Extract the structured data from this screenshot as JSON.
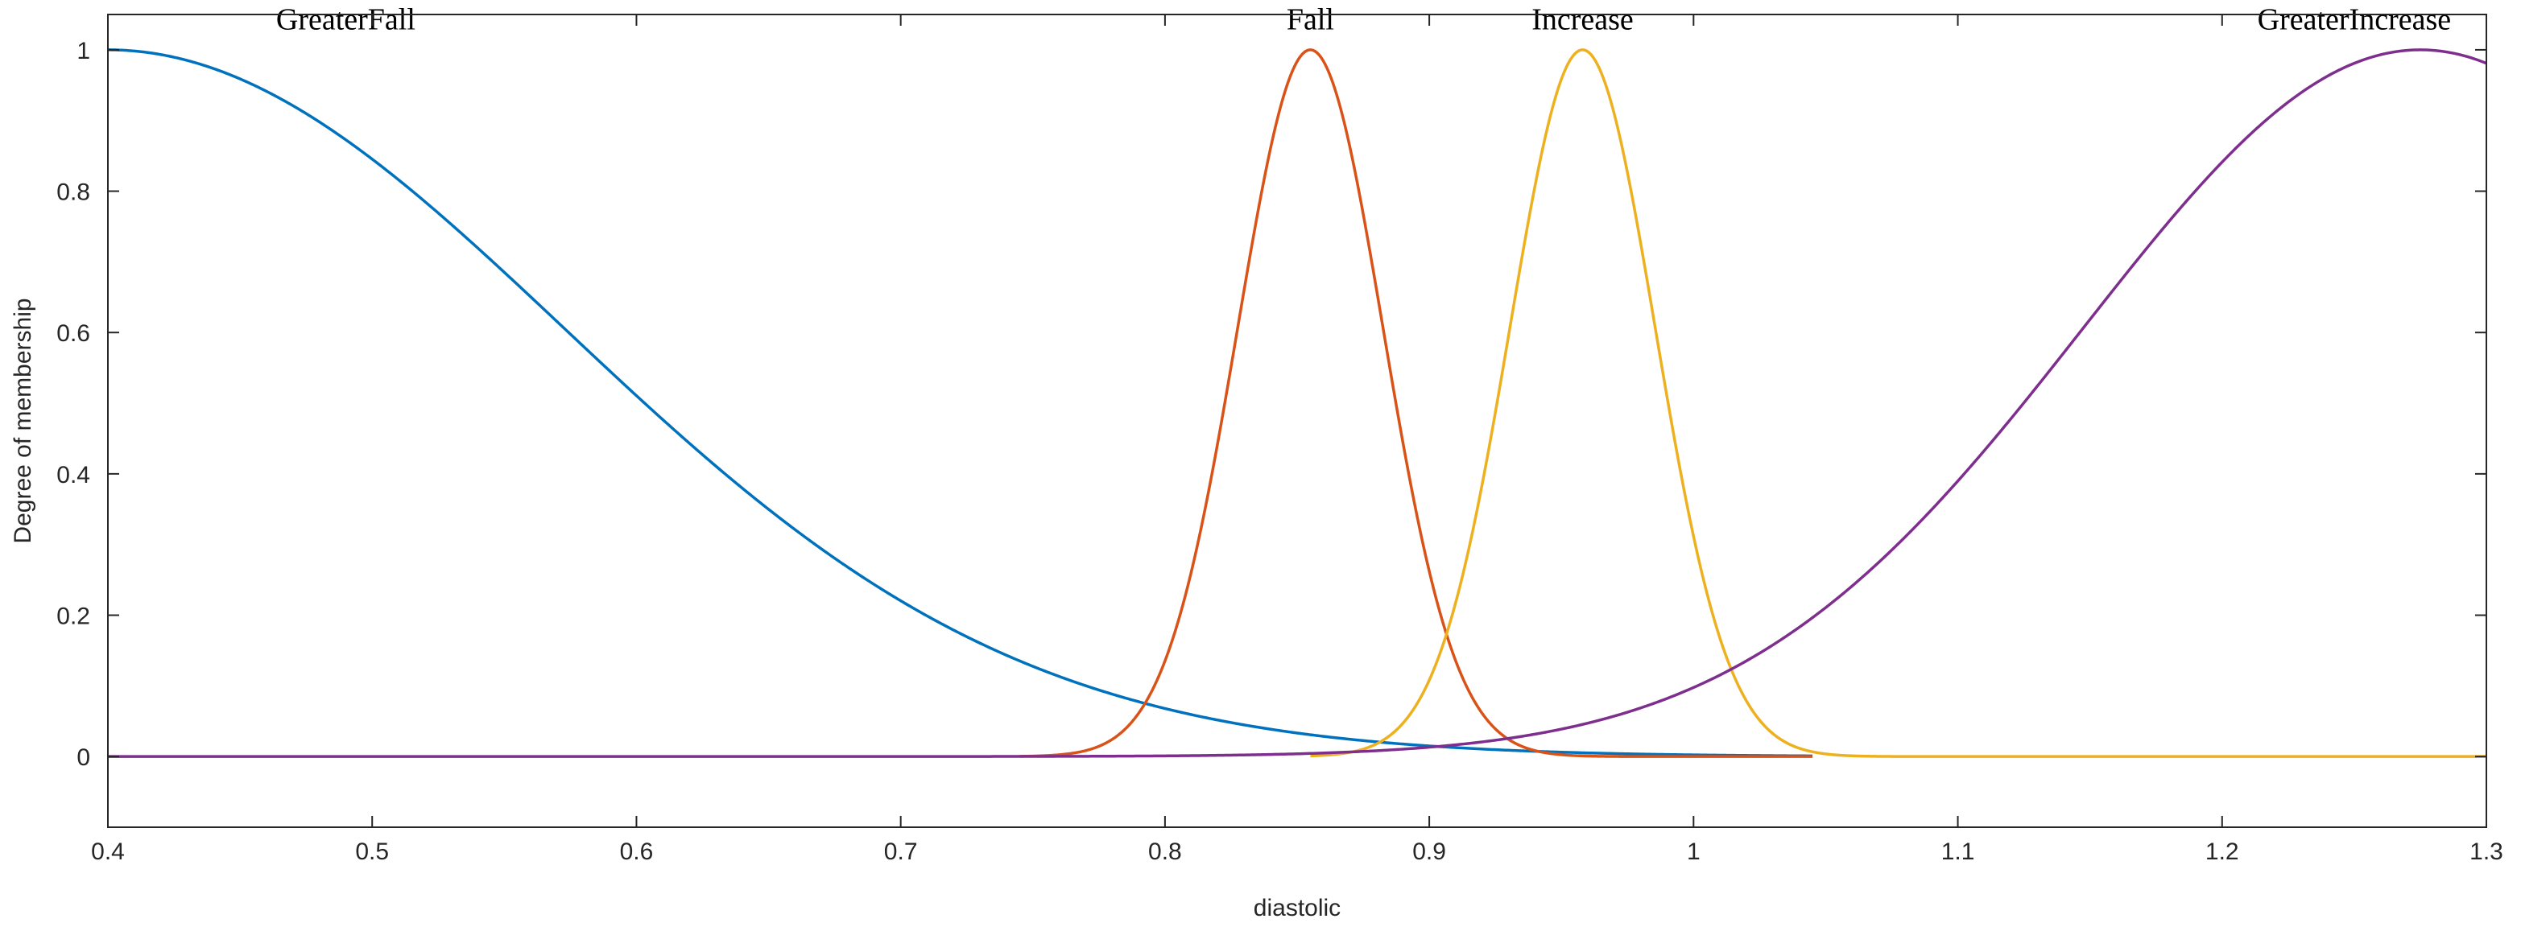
{
  "chart_data": {
    "type": "line",
    "xlabel": "diastolic",
    "ylabel": "Degree of membership",
    "xlim": [
      0.4,
      1.3
    ],
    "ylim": [
      -0.1,
      1.05
    ],
    "xticks": [
      "0.4",
      "0.5",
      "0.6",
      "0.7",
      "0.8",
      "0.9",
      "1",
      "1.1",
      "1.2",
      "1.3"
    ],
    "yticks": [
      "0",
      "0.2",
      "0.4",
      "0.6",
      "0.8",
      "1"
    ],
    "grid": false,
    "legend": "none",
    "series": [
      {
        "name": "GreaterFall",
        "color": "#0072BD",
        "mf": "gaussmf",
        "params": {
          "sigma": 0.1725,
          "center": 0.4
        },
        "x_range": [
          0.4,
          1.045
        ],
        "sample_points": [
          [
            0.4,
            1.0
          ],
          [
            0.5,
            0.85
          ],
          [
            0.6,
            0.51
          ],
          [
            0.7,
            0.22
          ],
          [
            0.8,
            0.07
          ],
          [
            0.9,
            0.018
          ],
          [
            1.0,
            0.003
          ]
        ]
      },
      {
        "name": "Fall",
        "color": "#D95319",
        "mf": "gaussmf",
        "params": {
          "sigma": 0.0275,
          "center": 0.855
        },
        "x_range": [
          0.745,
          1.045
        ],
        "sample_points": [
          [
            0.75,
            0.0
          ],
          [
            0.8,
            0.14
          ],
          [
            0.855,
            1.0
          ],
          [
            0.9,
            0.26
          ],
          [
            0.95,
            0.003
          ],
          [
            1.0,
            0.0
          ]
        ]
      },
      {
        "name": "Increase",
        "color": "#EDB120",
        "mf": "gaussmf",
        "params": {
          "sigma": 0.0275,
          "center": 0.958
        },
        "x_range": [
          0.855,
          1.3
        ],
        "sample_points": [
          [
            0.86,
            0.0
          ],
          [
            0.9,
            0.11
          ],
          [
            0.958,
            1.0
          ],
          [
            1.0,
            0.31
          ],
          [
            1.05,
            0.004
          ],
          [
            1.1,
            0.0
          ]
        ]
      },
      {
        "name": "GreaterIncrease",
        "color": "#7E2F8E",
        "mf": "gaussmf",
        "params": {
          "sigma": 0.1275,
          "center": 1.275
        },
        "x_range": [
          0.4,
          1.3
        ],
        "sample_points": [
          [
            0.8,
            0.0
          ],
          [
            0.9,
            0.013
          ],
          [
            1.0,
            0.1
          ],
          [
            1.1,
            0.39
          ],
          [
            1.2,
            0.84
          ],
          [
            1.275,
            1.0
          ],
          [
            1.3,
            0.98
          ]
        ]
      }
    ],
    "annotations": [
      {
        "text": "GreaterFall",
        "x": 0.49,
        "y": 1.045
      },
      {
        "text": "Fall",
        "x": 0.855,
        "y": 1.045
      },
      {
        "text": "Increase",
        "x": 0.958,
        "y": 1.045
      },
      {
        "text": "GreaterIncrease",
        "x": 1.25,
        "y": 1.045
      }
    ]
  }
}
